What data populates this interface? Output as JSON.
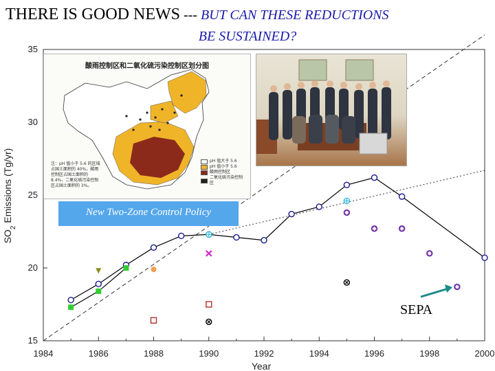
{
  "title": {
    "bold_part": "THERE IS GOOD NEWS",
    "separator": " --- ",
    "italic_part": "BUT CAN THESE REDUCTIONS",
    "line2": "BE SUSTAINED?"
  },
  "map_inset": {
    "title": "酸雨控制区和二氧化硫污染控制区划分图",
    "legend": [
      {
        "color": "#ffffff",
        "text": "pH 值大于 5.6"
      },
      {
        "color": "#f0b428",
        "text": "pH 值小于 5.6"
      },
      {
        "color": "#8b2a1a",
        "text": "酸雨控制区"
      },
      {
        "color": "#222222",
        "text": "二氧化硫污染控制区"
      }
    ],
    "note": "注：pH 值小于 5.6 的区域占国土面积的 40%，酸雨控制区占国土面积的 8.4%，二氧化硫污染控制区占国土面积的 3%。"
  },
  "annotations": {
    "policy": "New Two-Zone Control Policy",
    "sepa": "SEPA"
  },
  "chart_data": {
    "type": "scatter",
    "title": "",
    "xlabel": "Year",
    "ylabel": "SO2 Emissions (Tg/yr)",
    "ylabel_parts": {
      "pre": "SO",
      "sub": "2",
      "post": " Emissions (Tg/yr)"
    },
    "xlim": [
      1984,
      2000
    ],
    "ylim": [
      15,
      35
    ],
    "xticks": [
      "1984",
      "1986",
      "1988",
      "1990",
      "1992",
      "1994",
      "1996",
      "1998",
      "2000"
    ],
    "yticks": [
      "15",
      "20",
      "25",
      "30",
      "35"
    ],
    "grid": false,
    "series": [
      {
        "marker": "circle",
        "color": "#1a1a8c",
        "connected": true,
        "x": [
          1985,
          1986,
          1987,
          1988,
          1989,
          1990,
          1991,
          1992,
          1993,
          1994,
          1995,
          1996,
          1997,
          2000
        ],
        "y": [
          17.8,
          18.9,
          20.2,
          21.4,
          22.2,
          22.3,
          22.1,
          21.9,
          23.7,
          24.2,
          25.7,
          26.2,
          24.9,
          20.7
        ]
      },
      {
        "marker": "square",
        "color": "#33cc33",
        "connected": true,
        "x": [
          1985,
          1986,
          1987
        ],
        "y": [
          17.3,
          18.4,
          20.0
        ]
      },
      {
        "marker": "triangle-down",
        "color": "#8b8b1a",
        "connected": false,
        "x": [
          1986
        ],
        "y": [
          19.8
        ]
      },
      {
        "marker": "circle-filled",
        "color": "#f0a050",
        "connected": false,
        "x": [
          1988
        ],
        "y": [
          19.9
        ]
      },
      {
        "marker": "square-open",
        "color": "#b03030",
        "connected": false,
        "x": [
          1988,
          1990
        ],
        "y": [
          16.4,
          17.5
        ]
      },
      {
        "marker": "circle-dot",
        "color": "#000000",
        "connected": false,
        "x": [
          1990,
          1995
        ],
        "y": [
          16.3,
          19.0
        ]
      },
      {
        "marker": "cross",
        "color": "#cc2ecc",
        "connected": false,
        "x": [
          1990
        ],
        "y": [
          21.0
        ]
      },
      {
        "marker": "circle-cross",
        "color": "#33bbdd",
        "connected": false,
        "x": [
          1990,
          1995
        ],
        "y": [
          22.3,
          24.6
        ]
      },
      {
        "marker": "circle-star",
        "color": "#6a2aa0",
        "connected": false,
        "x": [
          1995,
          1996,
          1997,
          1998,
          1999
        ],
        "y": [
          23.8,
          22.7,
          22.7,
          21.0,
          18.7
        ]
      }
    ],
    "trend_lines": [
      {
        "style": "dashed",
        "x": [
          1984,
          2000
        ],
        "y": [
          15.0,
          36.0
        ]
      },
      {
        "style": "dotted",
        "x": [
          1990,
          2000
        ],
        "y": [
          22.3,
          26.7
        ]
      }
    ]
  }
}
